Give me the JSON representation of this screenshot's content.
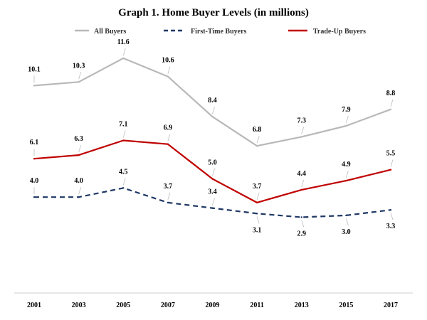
{
  "chart_data": {
    "type": "line",
    "title": "Graph 1. Home Buyer Levels (in millions)",
    "xlabel": "",
    "ylabel": "",
    "x": [
      "2001",
      "2003",
      "2005",
      "2007",
      "2009",
      "2011",
      "2013",
      "2015",
      "2017"
    ],
    "ylim": [
      0,
      13
    ],
    "grid": false,
    "legend": "top",
    "series": [
      {
        "name": "All Buyers",
        "color": "#b8b8b8",
        "style": "solid",
        "values": [
          10.1,
          10.3,
          11.6,
          10.6,
          8.4,
          6.8,
          7.3,
          7.9,
          8.8
        ],
        "labels": [
          "10.1",
          "10.3",
          "11.6",
          "10.6",
          "8.4",
          "6.8",
          "7.3",
          "7.9",
          "8.8"
        ]
      },
      {
        "name": "First-Time Buyers",
        "color": "#1f3864",
        "style": "dashed",
        "values": [
          4.0,
          4.0,
          4.5,
          3.7,
          3.4,
          3.1,
          2.9,
          3.0,
          3.3
        ],
        "labels": [
          "4.0",
          "4.0",
          "4.5",
          "3.7",
          "3.4",
          "3.1",
          "2.9",
          "3.0",
          "3.3"
        ]
      },
      {
        "name": "Trade-Up Buyers",
        "color": "#c00000",
        "style": "solid",
        "values": [
          6.1,
          6.3,
          7.1,
          6.9,
          5.0,
          3.7,
          4.4,
          4.9,
          5.5
        ],
        "labels": [
          "6.1",
          "6.3",
          "7.1",
          "6.9",
          "5.0",
          "3.7",
          "4.4",
          "4.9",
          "5.5"
        ]
      }
    ]
  }
}
